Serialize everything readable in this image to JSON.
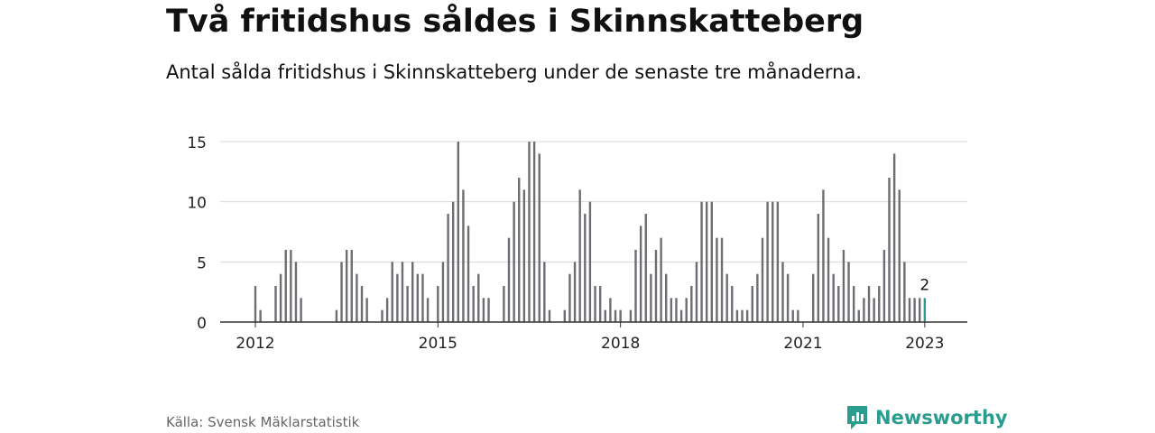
{
  "header": {
    "title": "Två fritidshus såldes i Skinnskatteberg",
    "subtitle": "Antal sålda fritidshus i Skinnskatteberg under de senaste tre månaderna."
  },
  "footer": {
    "source": "Källa: Svensk Mäklarstatistik",
    "brand": "Newsworthy",
    "brand_icon": "newsworthy-logo-icon"
  },
  "colors": {
    "bar": "#6d6d72",
    "highlight": "#2a9d8f",
    "grid": "#d9d9d9",
    "axis": "#333333"
  },
  "chart_data": {
    "type": "bar",
    "title": "Två fritidshus såldes i Skinnskatteberg",
    "subtitle": "Antal sålda fritidshus i Skinnskatteberg under de senaste tre månaderna.",
    "xlabel": "",
    "ylabel": "",
    "ylim": [
      0,
      15
    ],
    "yticks": [
      0,
      5,
      10,
      15
    ],
    "xtick_labels": [
      "2012",
      "2015",
      "2018",
      "2021",
      "2023"
    ],
    "grid": true,
    "legend": "none",
    "x": [
      "2012-01",
      "2012-02",
      "2012-03",
      "2012-04",
      "2012-05",
      "2012-06",
      "2012-07",
      "2012-08",
      "2012-09",
      "2012-10",
      "2012-11",
      "2012-12",
      "2013-01",
      "2013-02",
      "2013-03",
      "2013-04",
      "2013-05",
      "2013-06",
      "2013-07",
      "2013-08",
      "2013-09",
      "2013-10",
      "2013-11",
      "2013-12",
      "2014-01",
      "2014-02",
      "2014-03",
      "2014-04",
      "2014-05",
      "2014-06",
      "2014-07",
      "2014-08",
      "2014-09",
      "2014-10",
      "2014-11",
      "2014-12",
      "2015-01",
      "2015-02",
      "2015-03",
      "2015-04",
      "2015-05",
      "2015-06",
      "2015-07",
      "2015-08",
      "2015-09",
      "2015-10",
      "2015-11",
      "2015-12",
      "2016-01",
      "2016-02",
      "2016-03",
      "2016-04",
      "2016-05",
      "2016-06",
      "2016-07",
      "2016-08",
      "2016-09",
      "2016-10",
      "2016-11",
      "2016-12",
      "2017-01",
      "2017-02",
      "2017-03",
      "2017-04",
      "2017-05",
      "2017-06",
      "2017-07",
      "2017-08",
      "2017-09",
      "2017-10",
      "2017-11",
      "2017-12",
      "2018-01",
      "2018-02",
      "2018-03",
      "2018-04",
      "2018-05",
      "2018-06",
      "2018-07",
      "2018-08",
      "2018-09",
      "2018-10",
      "2018-11",
      "2018-12",
      "2019-01",
      "2019-02",
      "2019-03",
      "2019-04",
      "2019-05",
      "2019-06",
      "2019-07",
      "2019-08",
      "2019-09",
      "2019-10",
      "2019-11",
      "2019-12",
      "2020-01",
      "2020-02",
      "2020-03",
      "2020-04",
      "2020-05",
      "2020-06",
      "2020-07",
      "2020-08",
      "2020-09",
      "2020-10",
      "2020-11",
      "2020-12",
      "2021-01",
      "2021-02",
      "2021-03",
      "2021-04",
      "2021-05",
      "2021-06",
      "2021-07",
      "2021-08",
      "2021-09",
      "2021-10",
      "2021-11",
      "2021-12",
      "2022-01",
      "2022-02",
      "2022-03",
      "2022-04",
      "2022-05",
      "2022-06",
      "2022-07",
      "2022-08",
      "2022-09",
      "2022-10",
      "2022-11",
      "2022-12",
      "2023-01"
    ],
    "values": [
      3,
      1,
      0,
      0,
      3,
      4,
      6,
      6,
      5,
      2,
      0,
      0,
      0,
      0,
      0,
      0,
      1,
      5,
      6,
      6,
      4,
      3,
      2,
      0,
      0,
      1,
      2,
      5,
      4,
      5,
      3,
      5,
      4,
      4,
      2,
      0,
      3,
      5,
      9,
      10,
      15,
      11,
      8,
      3,
      4,
      2,
      2,
      0,
      0,
      3,
      7,
      10,
      12,
      11,
      15,
      15,
      14,
      5,
      1,
      0,
      0,
      1,
      4,
      5,
      11,
      9,
      10,
      3,
      3,
      1,
      2,
      1,
      1,
      0,
      1,
      6,
      8,
      9,
      4,
      6,
      7,
      4,
      2,
      2,
      1,
      2,
      3,
      5,
      10,
      10,
      10,
      7,
      7,
      4,
      3,
      1,
      1,
      1,
      3,
      4,
      7,
      10,
      10,
      10,
      5,
      4,
      1,
      1,
      0,
      0,
      4,
      9,
      11,
      7,
      4,
      3,
      6,
      5,
      3,
      1,
      2,
      3,
      2,
      3,
      6,
      12,
      14,
      11,
      5,
      2,
      2,
      2,
      2
    ],
    "highlight_index": 132,
    "annotations": [
      {
        "x": "2023-01",
        "text": "2"
      }
    ]
  }
}
